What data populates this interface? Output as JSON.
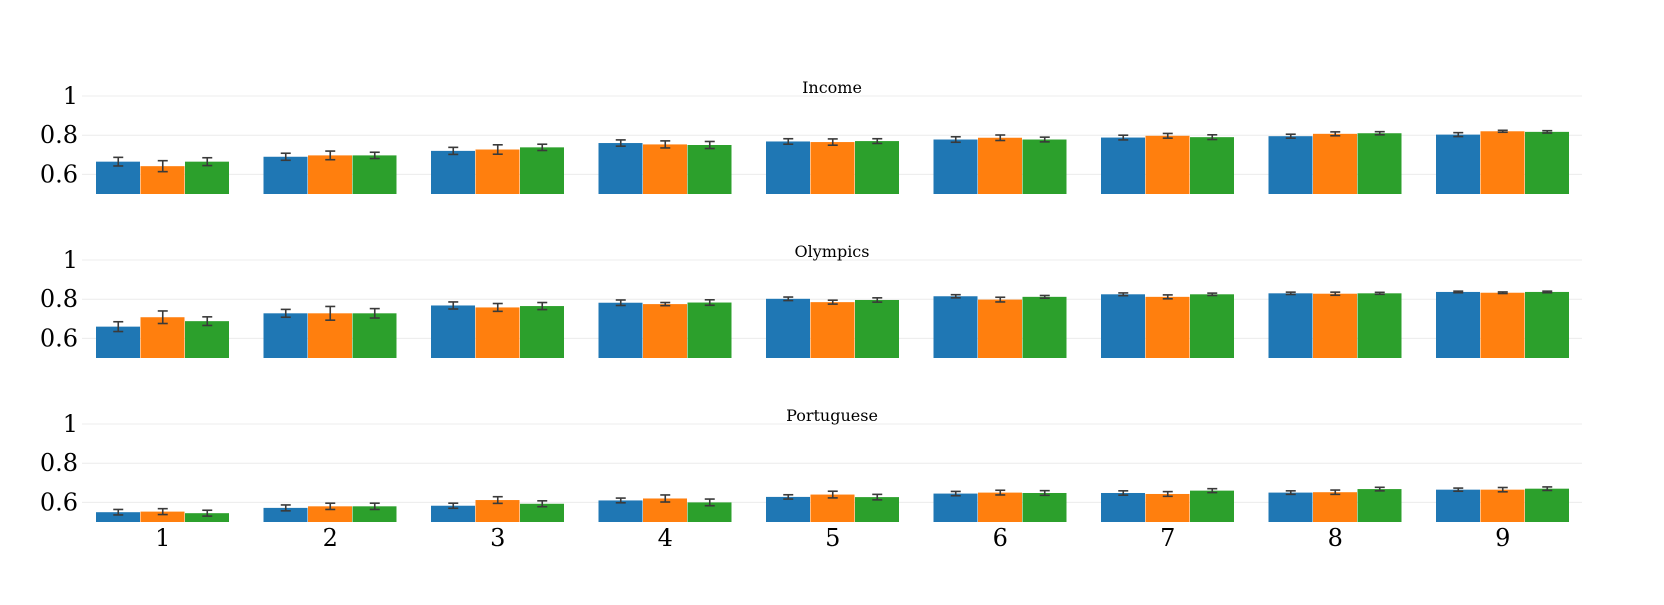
{
  "chart_data": {
    "type": "bar",
    "categories": [
      "1",
      "2",
      "3",
      "4",
      "5",
      "6",
      "7",
      "8",
      "9"
    ],
    "y_ticks": [
      0.6,
      0.8,
      1
    ],
    "y_tick_labels": [
      "0.6",
      "0.8",
      "1"
    ],
    "ylim": [
      0.5,
      1.0
    ],
    "grid": true,
    "series_colors": [
      "#1f77b4",
      "#ff7f0e",
      "#2ca02c"
    ],
    "panels": [
      {
        "title": "Income",
        "series": [
          {
            "values": [
              0.665,
              0.69,
              0.72,
              0.76,
              0.768,
              0.778,
              0.788,
              0.795,
              0.803
            ],
            "errors": [
              0.022,
              0.018,
              0.018,
              0.016,
              0.014,
              0.014,
              0.012,
              0.01,
              0.01
            ]
          },
          {
            "values": [
              0.642,
              0.697,
              0.727,
              0.753,
              0.765,
              0.787,
              0.797,
              0.807,
              0.82
            ],
            "errors": [
              0.028,
              0.022,
              0.024,
              0.018,
              0.016,
              0.014,
              0.012,
              0.01,
              0.005
            ]
          },
          {
            "values": [
              0.665,
              0.697,
              0.738,
              0.75,
              0.77,
              0.778,
              0.79,
              0.81,
              0.817
            ],
            "errors": [
              0.02,
              0.016,
              0.016,
              0.018,
              0.012,
              0.012,
              0.012,
              0.008,
              0.006
            ]
          }
        ]
      },
      {
        "title": "Olympics",
        "series": [
          {
            "values": [
              0.66,
              0.728,
              0.768,
              0.782,
              0.802,
              0.815,
              0.825,
              0.83,
              0.837
            ],
            "errors": [
              0.025,
              0.02,
              0.018,
              0.014,
              0.009,
              0.008,
              0.007,
              0.006,
              0.004
            ]
          },
          {
            "values": [
              0.708,
              0.728,
              0.758,
              0.775,
              0.785,
              0.798,
              0.812,
              0.828,
              0.833
            ],
            "errors": [
              0.032,
              0.035,
              0.02,
              0.008,
              0.01,
              0.012,
              0.01,
              0.008,
              0.004
            ]
          },
          {
            "values": [
              0.688,
              0.728,
              0.765,
              0.783,
              0.796,
              0.812,
              0.825,
              0.83,
              0.837
            ],
            "errors": [
              0.022,
              0.024,
              0.018,
              0.014,
              0.011,
              0.007,
              0.006,
              0.005,
              0.004
            ]
          }
        ]
      },
      {
        "title": "Portuguese",
        "series": [
          {
            "values": [
              0.55,
              0.572,
              0.583,
              0.61,
              0.628,
              0.645,
              0.648,
              0.65,
              0.665
            ],
            "errors": [
              0.014,
              0.015,
              0.013,
              0.012,
              0.011,
              0.011,
              0.011,
              0.009,
              0.008
            ]
          },
          {
            "values": [
              0.553,
              0.58,
              0.612,
              0.62,
              0.64,
              0.65,
              0.643,
              0.652,
              0.665
            ],
            "errors": [
              0.015,
              0.016,
              0.017,
              0.018,
              0.017,
              0.012,
              0.012,
              0.011,
              0.011
            ]
          },
          {
            "values": [
              0.545,
              0.58,
              0.593,
              0.6,
              0.627,
              0.648,
              0.66,
              0.668,
              0.67
            ],
            "errors": [
              0.015,
              0.016,
              0.015,
              0.017,
              0.014,
              0.012,
              0.01,
              0.009,
              0.009
            ]
          }
        ]
      }
    ]
  }
}
